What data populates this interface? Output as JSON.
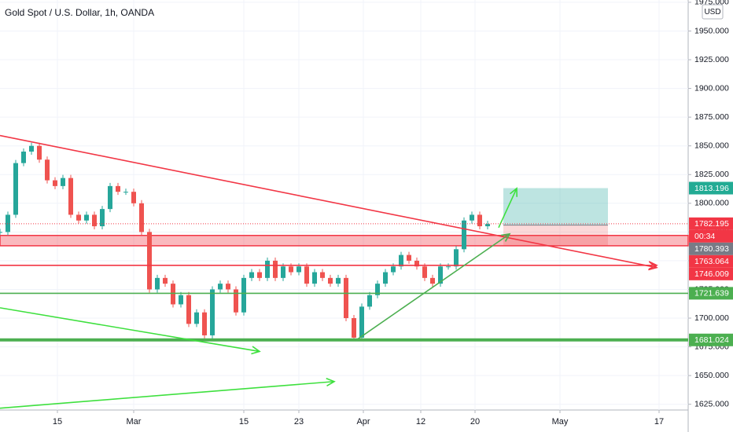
{
  "chart_data": {
    "type": "candlestick",
    "title": "Gold Spot / U.S. Dollar, 1h, OANDA",
    "currency": "USD",
    "xlim": [
      0,
      87.5
    ],
    "ylim": [
      1620,
      1977
    ],
    "xticks": [
      {
        "value": 7.3,
        "label": "15"
      },
      {
        "value": 17,
        "label": "Mar"
      },
      {
        "value": 31,
        "label": "15"
      },
      {
        "value": 38,
        "label": "23"
      },
      {
        "value": 46.2,
        "label": "Apr"
      },
      {
        "value": 53.5,
        "label": "12"
      },
      {
        "value": 60.4,
        "label": "20"
      },
      {
        "value": 71.2,
        "label": "May"
      },
      {
        "value": 83.8,
        "label": "17"
      }
    ],
    "yticks": [
      {
        "value": 1625,
        "label": "1625.000"
      },
      {
        "value": 1650,
        "label": "1650.000"
      },
      {
        "value": 1675,
        "label": "1675.000"
      },
      {
        "value": 1700,
        "label": "1700.000"
      },
      {
        "value": 1725,
        "label": "1725.000"
      },
      {
        "value": 1750,
        "label": "1750.000"
      },
      {
        "value": 1775,
        "label": "1775.000"
      },
      {
        "value": 1800,
        "label": "1800.000"
      },
      {
        "value": 1825,
        "label": "1825.000"
      },
      {
        "value": 1850,
        "label": "1850.000"
      },
      {
        "value": 1875,
        "label": "1875.000"
      },
      {
        "value": 1900,
        "label": "1900.000"
      },
      {
        "value": 1925,
        "label": "1925.000"
      },
      {
        "value": 1950,
        "label": "1950.000"
      },
      {
        "value": 1975,
        "label": "1975.000"
      }
    ],
    "grid": true,
    "up_color": "#26a69a",
    "down_color": "#ef5350",
    "x": [
      0,
      1,
      2,
      3,
      4,
      5,
      6,
      7,
      8,
      9,
      10,
      11,
      12,
      13,
      14,
      15,
      16,
      17,
      18,
      19,
      20,
      21,
      22,
      23,
      24,
      25,
      26,
      27,
      28,
      29,
      30,
      31,
      32,
      33,
      34,
      35,
      36,
      37,
      38,
      39,
      40,
      41,
      42,
      43,
      44,
      45,
      46,
      47,
      48,
      49,
      50,
      51,
      52,
      53,
      54,
      55,
      56,
      57,
      58,
      59,
      60,
      61,
      62
    ],
    "values": [
      1775,
      1790,
      1835,
      1845,
      1850,
      1838,
      1820,
      1815,
      1822,
      1790,
      1785,
      1790,
      1780,
      1795,
      1815,
      1810,
      1810,
      1800,
      1775,
      1725,
      1735,
      1730,
      1712,
      1720,
      1695,
      1705,
      1685,
      1725,
      1730,
      1725,
      1705,
      1735,
      1740,
      1735,
      1750,
      1735,
      1745,
      1740,
      1745,
      1730,
      1740,
      1735,
      1730,
      1735,
      1700,
      1683,
      1710,
      1720,
      1730,
      1740,
      1745,
      1755,
      1750,
      1745,
      1735,
      1730,
      1745,
      1745,
      1760,
      1785,
      1790,
      1780,
      1782
    ],
    "drawings": [
      {
        "kind": "zone",
        "color": "#f23645",
        "from": 1763,
        "to": 1772
      },
      {
        "kind": "line",
        "color": "#f23645",
        "x": [
          0,
          83.5
        ],
        "y": [
          1859,
          1744
        ],
        "arrow": true
      },
      {
        "kind": "line",
        "color": "#f23645",
        "x": [
          0,
          83.5
        ],
        "y": [
          1746,
          1746
        ],
        "arrow": true
      },
      {
        "kind": "line",
        "color": "#4caf50",
        "x": [
          0,
          87.5
        ],
        "y": [
          1721.6,
          1721.6
        ],
        "arrow": false
      },
      {
        "kind": "line",
        "color": "#4caf50",
        "x": [
          0,
          87.5
        ],
        "y": [
          1681,
          1681
        ],
        "arrow": false,
        "thick": true
      },
      {
        "kind": "line",
        "color": "#3ee03e",
        "x": [
          0,
          33
        ],
        "y": [
          1709,
          1671
        ],
        "arrow": true
      },
      {
        "kind": "line",
        "color": "#3ee03e",
        "x": [
          0,
          42.5
        ],
        "y": [
          1621.6,
          1644.8
        ],
        "arrow": true
      },
      {
        "kind": "line",
        "color": "#4caf50",
        "x": [
          45.2,
          64.8
        ],
        "y": [
          1680.4,
          1773.3
        ],
        "arrow": true
      },
      {
        "kind": "line",
        "color": "#3ee03e",
        "x": [
          63.4,
          65.7
        ],
        "y": [
          1778.8,
          1813
        ],
        "arrow": true
      },
      {
        "kind": "position",
        "x": [
          64,
          77.3
        ],
        "target": 1813.196,
        "entry": 1781,
        "stop": 1763.064
      }
    ],
    "price_labels": [
      {
        "value": 1813.196,
        "color": "#22ab94"
      },
      {
        "value": 1782.195,
        "color": "#f23645"
      },
      {
        "label": "00:34",
        "color": "#f23645"
      },
      {
        "value": 1780.393,
        "color": "#787b86"
      },
      {
        "value": 1763.064,
        "color": "#f23645"
      },
      {
        "value": 1746.009,
        "color": "#f23645"
      },
      {
        "value": 1721.639,
        "color": "#4caf50"
      },
      {
        "value": 1681.024,
        "color": "#4caf50"
      }
    ]
  }
}
